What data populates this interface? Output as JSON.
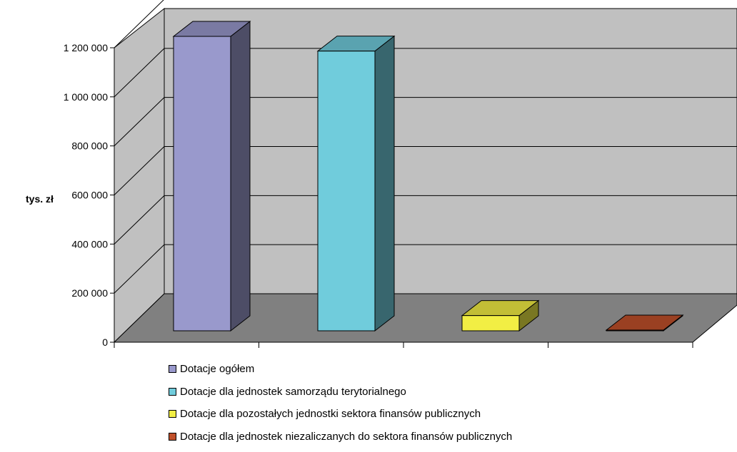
{
  "chart_data": {
    "type": "bar",
    "style": "3d-column",
    "ylabel": "tys. zł",
    "ylim": [
      0,
      1200000
    ],
    "yticks": [
      0,
      200000,
      400000,
      600000,
      800000,
      1000000,
      1200000
    ],
    "ytick_labels": [
      "0",
      "200 000",
      "400 000",
      "600 000",
      "800 000",
      "1 000 000",
      "1 200 000"
    ],
    "grid": true,
    "legend_position": "bottom",
    "series": [
      {
        "name": "Dotacje ogółem",
        "value": 1200000,
        "color": "#9999CC"
      },
      {
        "name": "Dotacje dla jednostek samorządu terytorialnego",
        "value": 1140000,
        "color": "#70CCDC"
      },
      {
        "name": "Dotacje dla  pozostałych jednostki sektora finansów publicznych",
        "value": 62000,
        "color": "#F2EE44"
      },
      {
        "name": "Dotacje dla jednostek niezaliczanych do sektora finansów publicznych",
        "value": 3000,
        "color": "#C0502A"
      }
    ],
    "colors": {
      "wall": "#C0C0C0",
      "floor": "#808080",
      "grid": "#000000"
    }
  }
}
